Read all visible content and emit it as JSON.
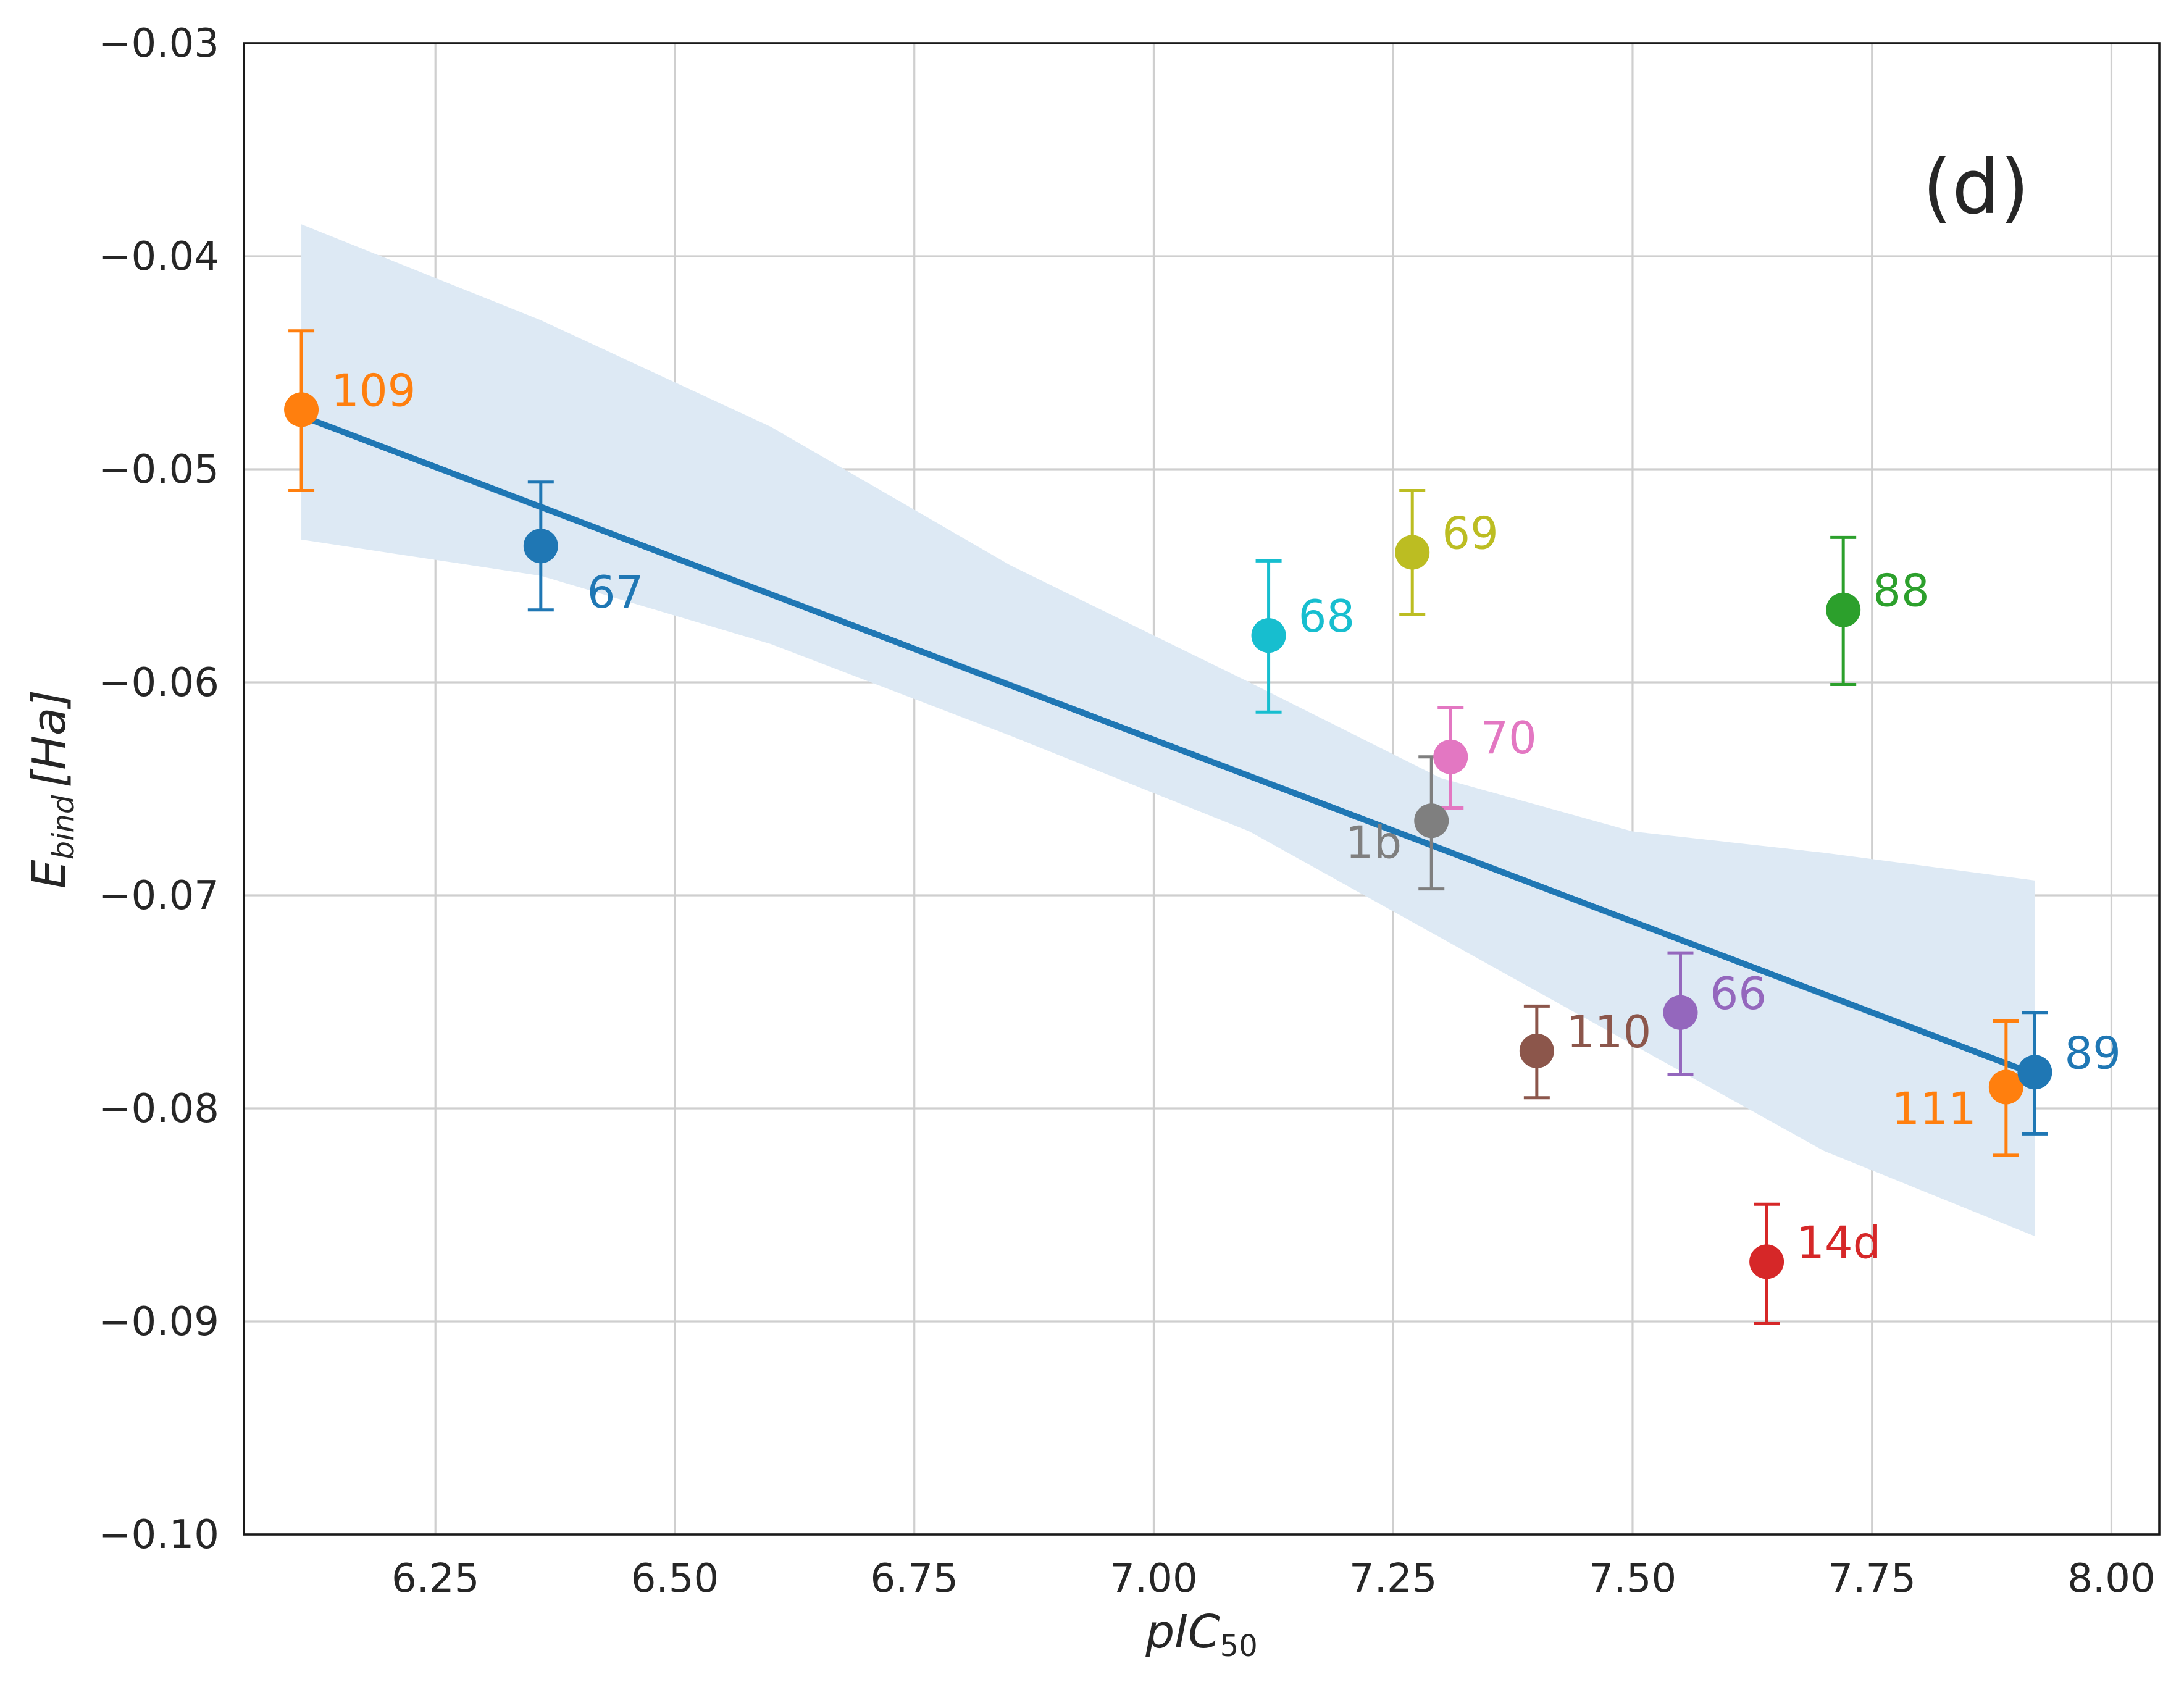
{
  "chart_data": {
    "type": "scatter",
    "panel_label": "(d)",
    "xlabel": {
      "main": "pIC",
      "subscript": "50"
    },
    "ylabel": {
      "main": "E",
      "subscript": "bind",
      "unit": "[Ha]"
    },
    "xlim": [
      6.05,
      8.05
    ],
    "ylim": [
      -0.1,
      -0.03
    ],
    "grid": true,
    "x_ticks": [
      {
        "value": 6.25,
        "label": "6.25"
      },
      {
        "value": 6.5,
        "label": "6.50"
      },
      {
        "value": 6.75,
        "label": "6.75"
      },
      {
        "value": 7.0,
        "label": "7.00"
      },
      {
        "value": 7.25,
        "label": "7.25"
      },
      {
        "value": 7.5,
        "label": "7.50"
      },
      {
        "value": 7.75,
        "label": "7.75"
      },
      {
        "value": 8.0,
        "label": "8.00"
      }
    ],
    "y_ticks": [
      {
        "value": -0.03,
        "label": "−0.03"
      },
      {
        "value": -0.04,
        "label": "−0.04"
      },
      {
        "value": -0.05,
        "label": "−0.05"
      },
      {
        "value": -0.06,
        "label": "−0.06"
      },
      {
        "value": -0.07,
        "label": "−0.07"
      },
      {
        "value": -0.08,
        "label": "−0.08"
      },
      {
        "value": -0.09,
        "label": "−0.09"
      },
      {
        "value": -0.1,
        "label": "−0.10"
      }
    ],
    "points": [
      {
        "label": "109",
        "x": 6.11,
        "y": -0.0472,
        "err_low": -0.051,
        "err_high": -0.0435,
        "color": "#ff7f0e",
        "label_pos": "right-up"
      },
      {
        "label": "67",
        "x": 6.36,
        "y": -0.0536,
        "err_low": -0.0566,
        "err_high": -0.0506,
        "color": "#1f77b4",
        "label_pos": "right-down"
      },
      {
        "label": "68",
        "x": 7.12,
        "y": -0.0578,
        "err_low": -0.0614,
        "err_high": -0.0543,
        "color": "#17becf",
        "label_pos": "right-up"
      },
      {
        "label": "69",
        "x": 7.27,
        "y": -0.0539,
        "err_low": -0.0568,
        "err_high": -0.051,
        "color": "#bcbd22",
        "label_pos": "right-up"
      },
      {
        "label": "70",
        "x": 7.31,
        "y": -0.0635,
        "err_low": -0.0659,
        "err_high": -0.0612,
        "color": "#e377c2",
        "label_pos": "right-up"
      },
      {
        "label": "1b",
        "x": 7.29,
        "y": -0.0665,
        "err_low": -0.0697,
        "err_high": -0.0635,
        "color": "#7f7f7f",
        "label_pos": "left-down"
      },
      {
        "label": "88",
        "x": 7.72,
        "y": -0.0566,
        "err_low": -0.0601,
        "err_high": -0.0532,
        "color": "#2ca02c",
        "label_pos": "right-up"
      },
      {
        "label": "110",
        "x": 7.4,
        "y": -0.0773,
        "err_low": -0.0795,
        "err_high": -0.0752,
        "color": "#8c564b",
        "label_pos": "right-up"
      },
      {
        "label": "66",
        "x": 7.55,
        "y": -0.0755,
        "err_low": -0.0784,
        "err_high": -0.0727,
        "color": "#9467bd",
        "label_pos": "right-up"
      },
      {
        "label": "14d",
        "x": 7.64,
        "y": -0.0872,
        "err_low": -0.0901,
        "err_high": -0.0845,
        "color": "#d62728",
        "label_pos": "right-up"
      },
      {
        "label": "111",
        "x": 7.89,
        "y": -0.079,
        "err_low": -0.0822,
        "err_high": -0.0759,
        "color": "#ff7f0e",
        "label_pos": "left-down"
      },
      {
        "label": "89",
        "x": 7.92,
        "y": -0.0783,
        "err_low": -0.0812,
        "err_high": -0.0755,
        "color": "#1f77b4",
        "label_pos": "right-up"
      }
    ],
    "regression": {
      "x": [
        6.11,
        7.92
      ],
      "y": [
        -0.0475,
        -0.0784
      ],
      "color": "#1f77b4"
    },
    "confidence_band": {
      "color": "#dde9f4",
      "x": [
        6.11,
        6.36,
        6.6,
        6.85,
        7.1,
        7.3,
        7.5,
        7.7,
        7.92
      ],
      "upper": [
        -0.0385,
        -0.043,
        -0.048,
        -0.0545,
        -0.06,
        -0.0645,
        -0.067,
        -0.068,
        -0.0693
      ],
      "lower": [
        -0.0533,
        -0.055,
        -0.0582,
        -0.0625,
        -0.067,
        -0.072,
        -0.077,
        -0.082,
        -0.086
      ]
    }
  }
}
